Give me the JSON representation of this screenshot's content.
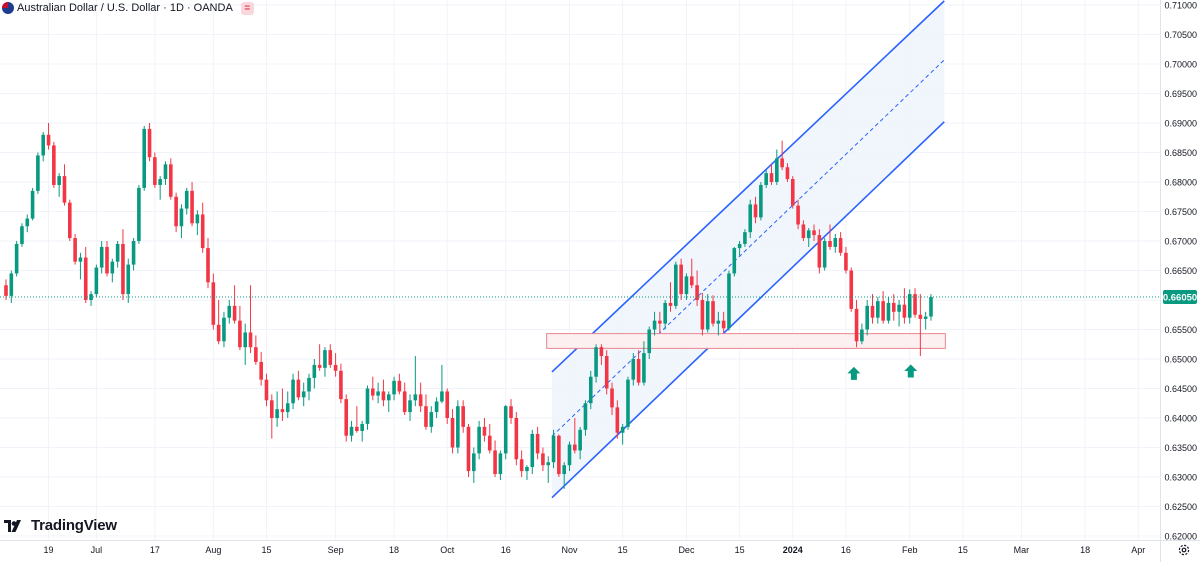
{
  "header": {
    "symbol_title": "Australian Dollar / U.S. Dollar · 1D · OANDA",
    "flag_icon": "au-flag-icon",
    "badge_label": "="
  },
  "logo": {
    "text": "TradingView",
    "icon": "tradingview-logo-icon"
  },
  "colors": {
    "up": "#089981",
    "down": "#f23645",
    "channel": "#2962ff",
    "channel_fill": "#eef4fd",
    "zone_stroke": "#e8868f",
    "zone_fill": "#fdf0f1",
    "price_badge": "#089981",
    "grid": "#f0f3fa",
    "axis_text": "#131722"
  },
  "chart_data": {
    "type": "candlestick",
    "symbol": "AUDUSD",
    "ylim": [
      0.62,
      0.71
    ],
    "y_ticks": [
      "0.71000",
      "0.70500",
      "0.70000",
      "0.69500",
      "0.69000",
      "0.68500",
      "0.68000",
      "0.67500",
      "0.67000",
      "0.66500",
      "0.66000",
      "0.65500",
      "0.65000",
      "0.64500",
      "0.64000",
      "0.63500",
      "0.63000",
      "0.62500",
      "0.62000"
    ],
    "x_ticks": [
      {
        "label": "19",
        "i": 8
      },
      {
        "label": "Jul",
        "i": 17
      },
      {
        "label": "17",
        "i": 28
      },
      {
        "label": "Aug",
        "i": 39
      },
      {
        "label": "15",
        "i": 49
      },
      {
        "label": "Sep",
        "i": 62
      },
      {
        "label": "18",
        "i": 73
      },
      {
        "label": "Oct",
        "i": 83
      },
      {
        "label": "16",
        "i": 94
      },
      {
        "label": "Nov",
        "i": 106
      },
      {
        "label": "15",
        "i": 116
      },
      {
        "label": "Dec",
        "i": 128
      },
      {
        "label": "15",
        "i": 138
      },
      {
        "label": "2024",
        "i": 148,
        "bold": true
      },
      {
        "label": "16",
        "i": 158
      },
      {
        "label": "Feb",
        "i": 170
      },
      {
        "label": "15",
        "i": 180
      },
      {
        "label": "Mar",
        "i": 191
      },
      {
        "label": "18",
        "i": 203
      },
      {
        "label": "Apr",
        "i": 213
      }
    ],
    "last_price": "0.66050",
    "last_value": 0.6605,
    "channel": {
      "start_i": 102.7,
      "end_i": 176.5,
      "upper": [
        0.6478,
        0.7107
      ],
      "middle": [
        0.6369,
        0.7007
      ],
      "lower": [
        0.6265,
        0.6902
      ]
    },
    "support_zone": {
      "start_i": 101.7,
      "end_i": 176.7,
      "top": 0.6543,
      "bottom": 0.6518
    },
    "arrows": [
      {
        "i": 159.5,
        "value": 0.6485
      },
      {
        "i": 170.2,
        "value": 0.6489
      }
    ],
    "candles": [
      [
        0.6625,
        0.6635,
        0.66,
        0.6607
      ],
      [
        0.6607,
        0.665,
        0.6595,
        0.6645
      ],
      [
        0.6645,
        0.67,
        0.664,
        0.6695
      ],
      [
        0.6695,
        0.673,
        0.669,
        0.6725
      ],
      [
        0.6725,
        0.6745,
        0.6715,
        0.6738
      ],
      [
        0.6738,
        0.679,
        0.6735,
        0.6785
      ],
      [
        0.6785,
        0.685,
        0.678,
        0.6845
      ],
      [
        0.6845,
        0.6885,
        0.6835,
        0.688
      ],
      [
        0.688,
        0.69,
        0.6855,
        0.6862
      ],
      [
        0.6862,
        0.6868,
        0.679,
        0.6795
      ],
      [
        0.6795,
        0.6815,
        0.6775,
        0.681
      ],
      [
        0.681,
        0.683,
        0.676,
        0.6765
      ],
      [
        0.6765,
        0.677,
        0.67,
        0.6705
      ],
      [
        0.6705,
        0.6712,
        0.666,
        0.6665
      ],
      [
        0.6665,
        0.668,
        0.6635,
        0.6672
      ],
      [
        0.6672,
        0.669,
        0.6595,
        0.66
      ],
      [
        0.66,
        0.6615,
        0.659,
        0.661
      ],
      [
        0.661,
        0.666,
        0.6605,
        0.6655
      ],
      [
        0.6655,
        0.67,
        0.6645,
        0.669
      ],
      [
        0.669,
        0.67,
        0.664,
        0.6645
      ],
      [
        0.6645,
        0.667,
        0.663,
        0.6665
      ],
      [
        0.6665,
        0.67,
        0.6655,
        0.6695
      ],
      [
        0.6695,
        0.672,
        0.66,
        0.661
      ],
      [
        0.661,
        0.667,
        0.6595,
        0.666
      ],
      [
        0.666,
        0.6705,
        0.665,
        0.67
      ],
      [
        0.67,
        0.6795,
        0.6695,
        0.679
      ],
      [
        0.679,
        0.6895,
        0.6785,
        0.689
      ],
      [
        0.689,
        0.69,
        0.6835,
        0.6842
      ],
      [
        0.6842,
        0.685,
        0.679,
        0.6795
      ],
      [
        0.6795,
        0.681,
        0.677,
        0.6805
      ],
      [
        0.6805,
        0.6835,
        0.6795,
        0.683
      ],
      [
        0.683,
        0.684,
        0.677,
        0.6775
      ],
      [
        0.6775,
        0.6782,
        0.6715,
        0.6725
      ],
      [
        0.6725,
        0.6762,
        0.6705,
        0.6755
      ],
      [
        0.6755,
        0.679,
        0.6745,
        0.6785
      ],
      [
        0.6785,
        0.68,
        0.6725,
        0.673
      ],
      [
        0.673,
        0.6752,
        0.671,
        0.6745
      ],
      [
        0.6745,
        0.6765,
        0.668,
        0.6688
      ],
      [
        0.6688,
        0.6705,
        0.662,
        0.663
      ],
      [
        0.663,
        0.6645,
        0.655,
        0.6558
      ],
      [
        0.6558,
        0.66,
        0.6525,
        0.653
      ],
      [
        0.653,
        0.658,
        0.652,
        0.657
      ],
      [
        0.657,
        0.66,
        0.656,
        0.659
      ],
      [
        0.659,
        0.6625,
        0.656,
        0.6565
      ],
      [
        0.6565,
        0.659,
        0.6515,
        0.652
      ],
      [
        0.652,
        0.656,
        0.649,
        0.6545
      ],
      [
        0.6545,
        0.6625,
        0.651,
        0.652
      ],
      [
        0.652,
        0.654,
        0.649,
        0.6495
      ],
      [
        0.6495,
        0.6512,
        0.6455,
        0.6465
      ],
      [
        0.6465,
        0.6475,
        0.642,
        0.643
      ],
      [
        0.643,
        0.644,
        0.6365,
        0.64
      ],
      [
        0.64,
        0.6445,
        0.6385,
        0.6415
      ],
      [
        0.6415,
        0.645,
        0.6395,
        0.641
      ],
      [
        0.641,
        0.6445,
        0.64,
        0.6425
      ],
      [
        0.6425,
        0.6475,
        0.6415,
        0.6465
      ],
      [
        0.6465,
        0.648,
        0.643,
        0.6435
      ],
      [
        0.6435,
        0.646,
        0.642,
        0.6445
      ],
      [
        0.6445,
        0.6475,
        0.643,
        0.6468
      ],
      [
        0.6468,
        0.65,
        0.645,
        0.649
      ],
      [
        0.649,
        0.6525,
        0.648,
        0.6485
      ],
      [
        0.6485,
        0.652,
        0.647,
        0.6515
      ],
      [
        0.6515,
        0.6525,
        0.6485,
        0.649
      ],
      [
        0.649,
        0.651,
        0.647,
        0.648
      ],
      [
        0.648,
        0.6492,
        0.6425,
        0.6432
      ],
      [
        0.6432,
        0.644,
        0.636,
        0.637
      ],
      [
        0.637,
        0.6395,
        0.636,
        0.6385
      ],
      [
        0.6385,
        0.642,
        0.6375,
        0.6378
      ],
      [
        0.6378,
        0.6395,
        0.636,
        0.639
      ],
      [
        0.639,
        0.6455,
        0.638,
        0.645
      ],
      [
        0.645,
        0.647,
        0.643,
        0.6438
      ],
      [
        0.6438,
        0.646,
        0.6425,
        0.6445
      ],
      [
        0.6445,
        0.6465,
        0.642,
        0.643
      ],
      [
        0.643,
        0.6445,
        0.641,
        0.644
      ],
      [
        0.644,
        0.647,
        0.643,
        0.6463
      ],
      [
        0.6463,
        0.6475,
        0.644,
        0.6445
      ],
      [
        0.6445,
        0.646,
        0.6405,
        0.641
      ],
      [
        0.641,
        0.644,
        0.6395,
        0.643
      ],
      [
        0.643,
        0.6505,
        0.642,
        0.644
      ],
      [
        0.644,
        0.646,
        0.641,
        0.642
      ],
      [
        0.642,
        0.644,
        0.638,
        0.6385
      ],
      [
        0.6385,
        0.642,
        0.6375,
        0.641
      ],
      [
        0.641,
        0.6435,
        0.64,
        0.6428
      ],
      [
        0.6428,
        0.649,
        0.6425,
        0.6445
      ],
      [
        0.6445,
        0.645,
        0.639,
        0.64
      ],
      [
        0.64,
        0.6415,
        0.634,
        0.635
      ],
      [
        0.635,
        0.643,
        0.634,
        0.642
      ],
      [
        0.642,
        0.643,
        0.6375,
        0.6385
      ],
      [
        0.6385,
        0.639,
        0.63,
        0.631
      ],
      [
        0.631,
        0.635,
        0.629,
        0.634
      ],
      [
        0.634,
        0.6395,
        0.633,
        0.6385
      ],
      [
        0.6385,
        0.64,
        0.636,
        0.637
      ],
      [
        0.637,
        0.639,
        0.634,
        0.6345
      ],
      [
        0.6345,
        0.6362,
        0.63,
        0.6305
      ],
      [
        0.6305,
        0.6345,
        0.6295,
        0.634
      ],
      [
        0.634,
        0.6422,
        0.633,
        0.642
      ],
      [
        0.642,
        0.6432,
        0.639,
        0.64
      ],
      [
        0.64,
        0.641,
        0.632,
        0.633
      ],
      [
        0.633,
        0.6345,
        0.63,
        0.631
      ],
      [
        0.631,
        0.632,
        0.6295,
        0.6317
      ],
      [
        0.6317,
        0.638,
        0.6305,
        0.6373
      ],
      [
        0.6373,
        0.6385,
        0.633,
        0.634
      ],
      [
        0.634,
        0.635,
        0.631,
        0.632
      ],
      [
        0.632,
        0.6335,
        0.629,
        0.6325
      ],
      [
        0.6325,
        0.638,
        0.6315,
        0.637
      ],
      [
        0.637,
        0.6372,
        0.63,
        0.6305
      ],
      [
        0.6305,
        0.6325,
        0.628,
        0.632
      ],
      [
        0.632,
        0.636,
        0.631,
        0.6355
      ],
      [
        0.6355,
        0.64,
        0.634,
        0.6345
      ],
      [
        0.6345,
        0.6385,
        0.633,
        0.638
      ],
      [
        0.638,
        0.643,
        0.637,
        0.6425
      ],
      [
        0.6425,
        0.648,
        0.6415,
        0.647
      ],
      [
        0.647,
        0.6525,
        0.646,
        0.652
      ],
      [
        0.652,
        0.6525,
        0.649,
        0.6505
      ],
      [
        0.6505,
        0.6515,
        0.644,
        0.645
      ],
      [
        0.645,
        0.646,
        0.6405,
        0.6418
      ],
      [
        0.6418,
        0.643,
        0.6365,
        0.6375
      ],
      [
        0.6375,
        0.639,
        0.6355,
        0.6385
      ],
      [
        0.6385,
        0.647,
        0.638,
        0.6465
      ],
      [
        0.6465,
        0.651,
        0.6455,
        0.65
      ],
      [
        0.65,
        0.6515,
        0.6455,
        0.646
      ],
      [
        0.646,
        0.653,
        0.6455,
        0.651
      ],
      [
        0.651,
        0.6555,
        0.65,
        0.655
      ],
      [
        0.655,
        0.658,
        0.654,
        0.6565
      ],
      [
        0.6565,
        0.658,
        0.6545,
        0.656
      ],
      [
        0.656,
        0.66,
        0.655,
        0.6595
      ],
      [
        0.6595,
        0.663,
        0.658,
        0.659
      ],
      [
        0.659,
        0.6665,
        0.6585,
        0.666
      ],
      [
        0.666,
        0.667,
        0.66,
        0.661
      ],
      [
        0.661,
        0.6645,
        0.66,
        0.664
      ],
      [
        0.664,
        0.667,
        0.662,
        0.6625
      ],
      [
        0.6625,
        0.665,
        0.659,
        0.66
      ],
      [
        0.66,
        0.6612,
        0.654,
        0.655
      ],
      [
        0.655,
        0.661,
        0.6545,
        0.6598
      ],
      [
        0.6598,
        0.6608,
        0.6555,
        0.656
      ],
      [
        0.656,
        0.658,
        0.654,
        0.6565
      ],
      [
        0.6565,
        0.658,
        0.6545,
        0.6552
      ],
      [
        0.6552,
        0.665,
        0.6548,
        0.6645
      ],
      [
        0.6645,
        0.669,
        0.664,
        0.6688
      ],
      [
        0.6688,
        0.67,
        0.6675,
        0.6695
      ],
      [
        0.6695,
        0.672,
        0.669,
        0.6715
      ],
      [
        0.6715,
        0.677,
        0.6705,
        0.6762
      ],
      [
        0.6762,
        0.6775,
        0.673,
        0.674
      ],
      [
        0.674,
        0.68,
        0.6735,
        0.6795
      ],
      [
        0.6795,
        0.682,
        0.679,
        0.6815
      ],
      [
        0.6815,
        0.683,
        0.6795,
        0.68
      ],
      [
        0.68,
        0.6855,
        0.6795,
        0.684
      ],
      [
        0.684,
        0.687,
        0.682,
        0.6825
      ],
      [
        0.6825,
        0.6832,
        0.68,
        0.6805
      ],
      [
        0.6805,
        0.681,
        0.6755,
        0.676
      ],
      [
        0.676,
        0.677,
        0.672,
        0.6728
      ],
      [
        0.6728,
        0.6735,
        0.67,
        0.6705
      ],
      [
        0.6705,
        0.6722,
        0.669,
        0.6718
      ],
      [
        0.6718,
        0.6728,
        0.67,
        0.671
      ],
      [
        0.671,
        0.672,
        0.6645,
        0.6655
      ],
      [
        0.6655,
        0.6705,
        0.665,
        0.67
      ],
      [
        0.67,
        0.6728,
        0.6685,
        0.669
      ],
      [
        0.669,
        0.6712,
        0.668,
        0.6705
      ],
      [
        0.6705,
        0.6715,
        0.6675,
        0.668
      ],
      [
        0.668,
        0.669,
        0.6645,
        0.665
      ],
      [
        0.665,
        0.6655,
        0.658,
        0.6585
      ],
      [
        0.6585,
        0.66,
        0.652,
        0.653
      ],
      [
        0.653,
        0.656,
        0.6525,
        0.655
      ],
      [
        0.655,
        0.66,
        0.654,
        0.659
      ],
      [
        0.659,
        0.661,
        0.656,
        0.657
      ],
      [
        0.657,
        0.6605,
        0.656,
        0.6598
      ],
      [
        0.6598,
        0.6615,
        0.656,
        0.6565
      ],
      [
        0.6565,
        0.6605,
        0.656,
        0.6595
      ],
      [
        0.6595,
        0.661,
        0.6565,
        0.658
      ],
      [
        0.658,
        0.66,
        0.6555,
        0.6592
      ],
      [
        0.6592,
        0.662,
        0.656,
        0.657
      ],
      [
        0.657,
        0.6618,
        0.656,
        0.661
      ],
      [
        0.661,
        0.662,
        0.657,
        0.6575
      ],
      [
        0.6575,
        0.661,
        0.6505,
        0.6568
      ],
      [
        0.6568,
        0.658,
        0.655,
        0.6572
      ],
      [
        0.6572,
        0.661,
        0.6565,
        0.6605
      ]
    ]
  }
}
